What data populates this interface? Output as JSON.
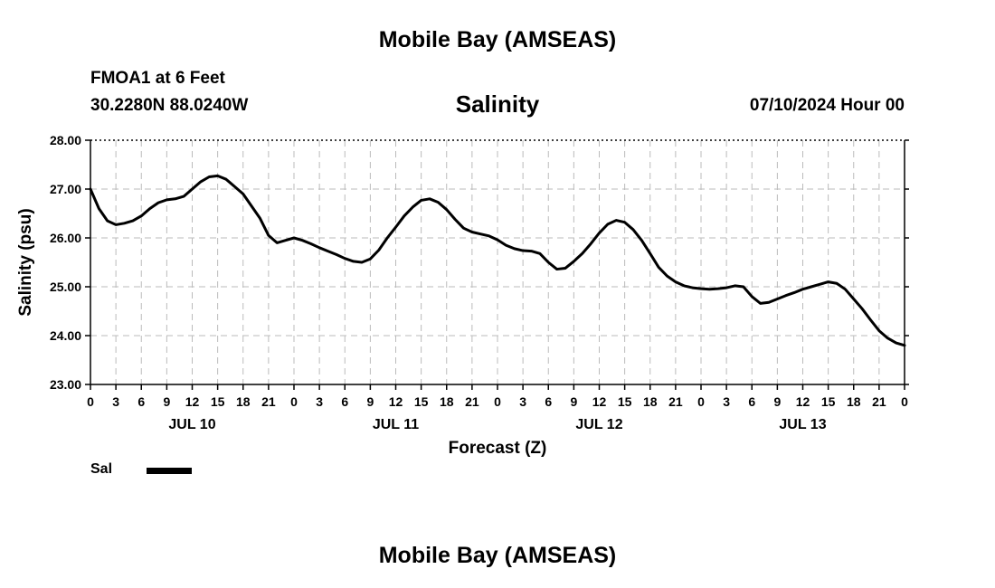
{
  "header": {
    "title": "Mobile Bay (AMSEAS)",
    "station": "FMOA1 at 6 Feet",
    "coordinates": "30.2280N  88.0240W",
    "run_time": "07/10/2024 Hour 00"
  },
  "footer": {
    "title": "Mobile Bay (AMSEAS)"
  },
  "chart_data": {
    "type": "line",
    "title": "Salinity",
    "xlabel": "Forecast (Z)",
    "ylabel": "Salinity (psu)",
    "ylim": [
      23,
      28
    ],
    "yticks": [
      23,
      24,
      25,
      26,
      27,
      28
    ],
    "ytick_labels": [
      "23.00",
      "24.00",
      "25.00",
      "26.00",
      "27.00",
      "28.00"
    ],
    "xlim": [
      0,
      96
    ],
    "xtick_hours": [
      0,
      3,
      6,
      9,
      12,
      15,
      18,
      21,
      24,
      27,
      30,
      33,
      36,
      39,
      42,
      45,
      48,
      51,
      54,
      57,
      60,
      63,
      66,
      69,
      72,
      75,
      78,
      81,
      84,
      87,
      90,
      93,
      96
    ],
    "xtick_labels": [
      "0",
      "3",
      "6",
      "9",
      "12",
      "15",
      "18",
      "21",
      "0",
      "3",
      "6",
      "9",
      "12",
      "15",
      "18",
      "21",
      "0",
      "3",
      "6",
      "9",
      "12",
      "15",
      "18",
      "21",
      "0",
      "3",
      "6",
      "9",
      "12",
      "15",
      "18",
      "21",
      "0"
    ],
    "day_labels": [
      {
        "hour": 12,
        "label": "JUL 10"
      },
      {
        "hour": 36,
        "label": "JUL 11"
      },
      {
        "hour": 60,
        "label": "JUL 12"
      },
      {
        "hour": 84,
        "label": "JUL 13"
      }
    ],
    "grid": true,
    "legend_position": "bottom-left",
    "series": [
      {
        "name": "Sal",
        "color": "#000000",
        "x": [
          0,
          1,
          2,
          3,
          4,
          5,
          6,
          7,
          8,
          9,
          10,
          11,
          12,
          13,
          14,
          15,
          16,
          17,
          18,
          19,
          20,
          21,
          22,
          23,
          24,
          25,
          26,
          27,
          28,
          29,
          30,
          31,
          32,
          33,
          34,
          35,
          36,
          37,
          38,
          39,
          40,
          41,
          42,
          43,
          44,
          45,
          46,
          47,
          48,
          49,
          50,
          51,
          52,
          53,
          54,
          55,
          56,
          57,
          58,
          59,
          60,
          61,
          62,
          63,
          64,
          65,
          66,
          67,
          68,
          69,
          70,
          71,
          72,
          73,
          74,
          75,
          76,
          77,
          78,
          79,
          80,
          81,
          82,
          83,
          84,
          85,
          86,
          87,
          88,
          89,
          90,
          91,
          92,
          93,
          94,
          95,
          96
        ],
        "values": [
          27.0,
          26.6,
          26.35,
          26.27,
          26.3,
          26.35,
          26.45,
          26.6,
          26.72,
          26.78,
          26.8,
          26.85,
          27.0,
          27.15,
          27.25,
          27.27,
          27.2,
          27.05,
          26.9,
          26.65,
          26.4,
          26.05,
          25.9,
          25.95,
          26.0,
          25.95,
          25.88,
          25.8,
          25.73,
          25.66,
          25.58,
          25.52,
          25.5,
          25.57,
          25.75,
          26.0,
          26.22,
          26.45,
          26.63,
          26.77,
          26.8,
          26.73,
          26.58,
          26.38,
          26.2,
          26.12,
          26.08,
          26.04,
          25.96,
          25.85,
          25.78,
          25.74,
          25.73,
          25.68,
          25.5,
          25.36,
          25.38,
          25.52,
          25.68,
          25.88,
          26.1,
          26.28,
          26.36,
          26.32,
          26.17,
          25.95,
          25.68,
          25.4,
          25.22,
          25.1,
          25.02,
          24.98,
          24.96,
          24.95,
          24.96,
          24.98,
          25.02,
          25.0,
          24.8,
          24.66,
          24.68,
          24.75,
          24.82,
          24.88,
          24.95,
          25.0,
          25.05,
          25.1,
          25.07,
          24.95,
          24.75,
          24.55,
          24.32,
          24.1,
          23.95,
          23.85,
          23.8
        ]
      }
    ]
  }
}
